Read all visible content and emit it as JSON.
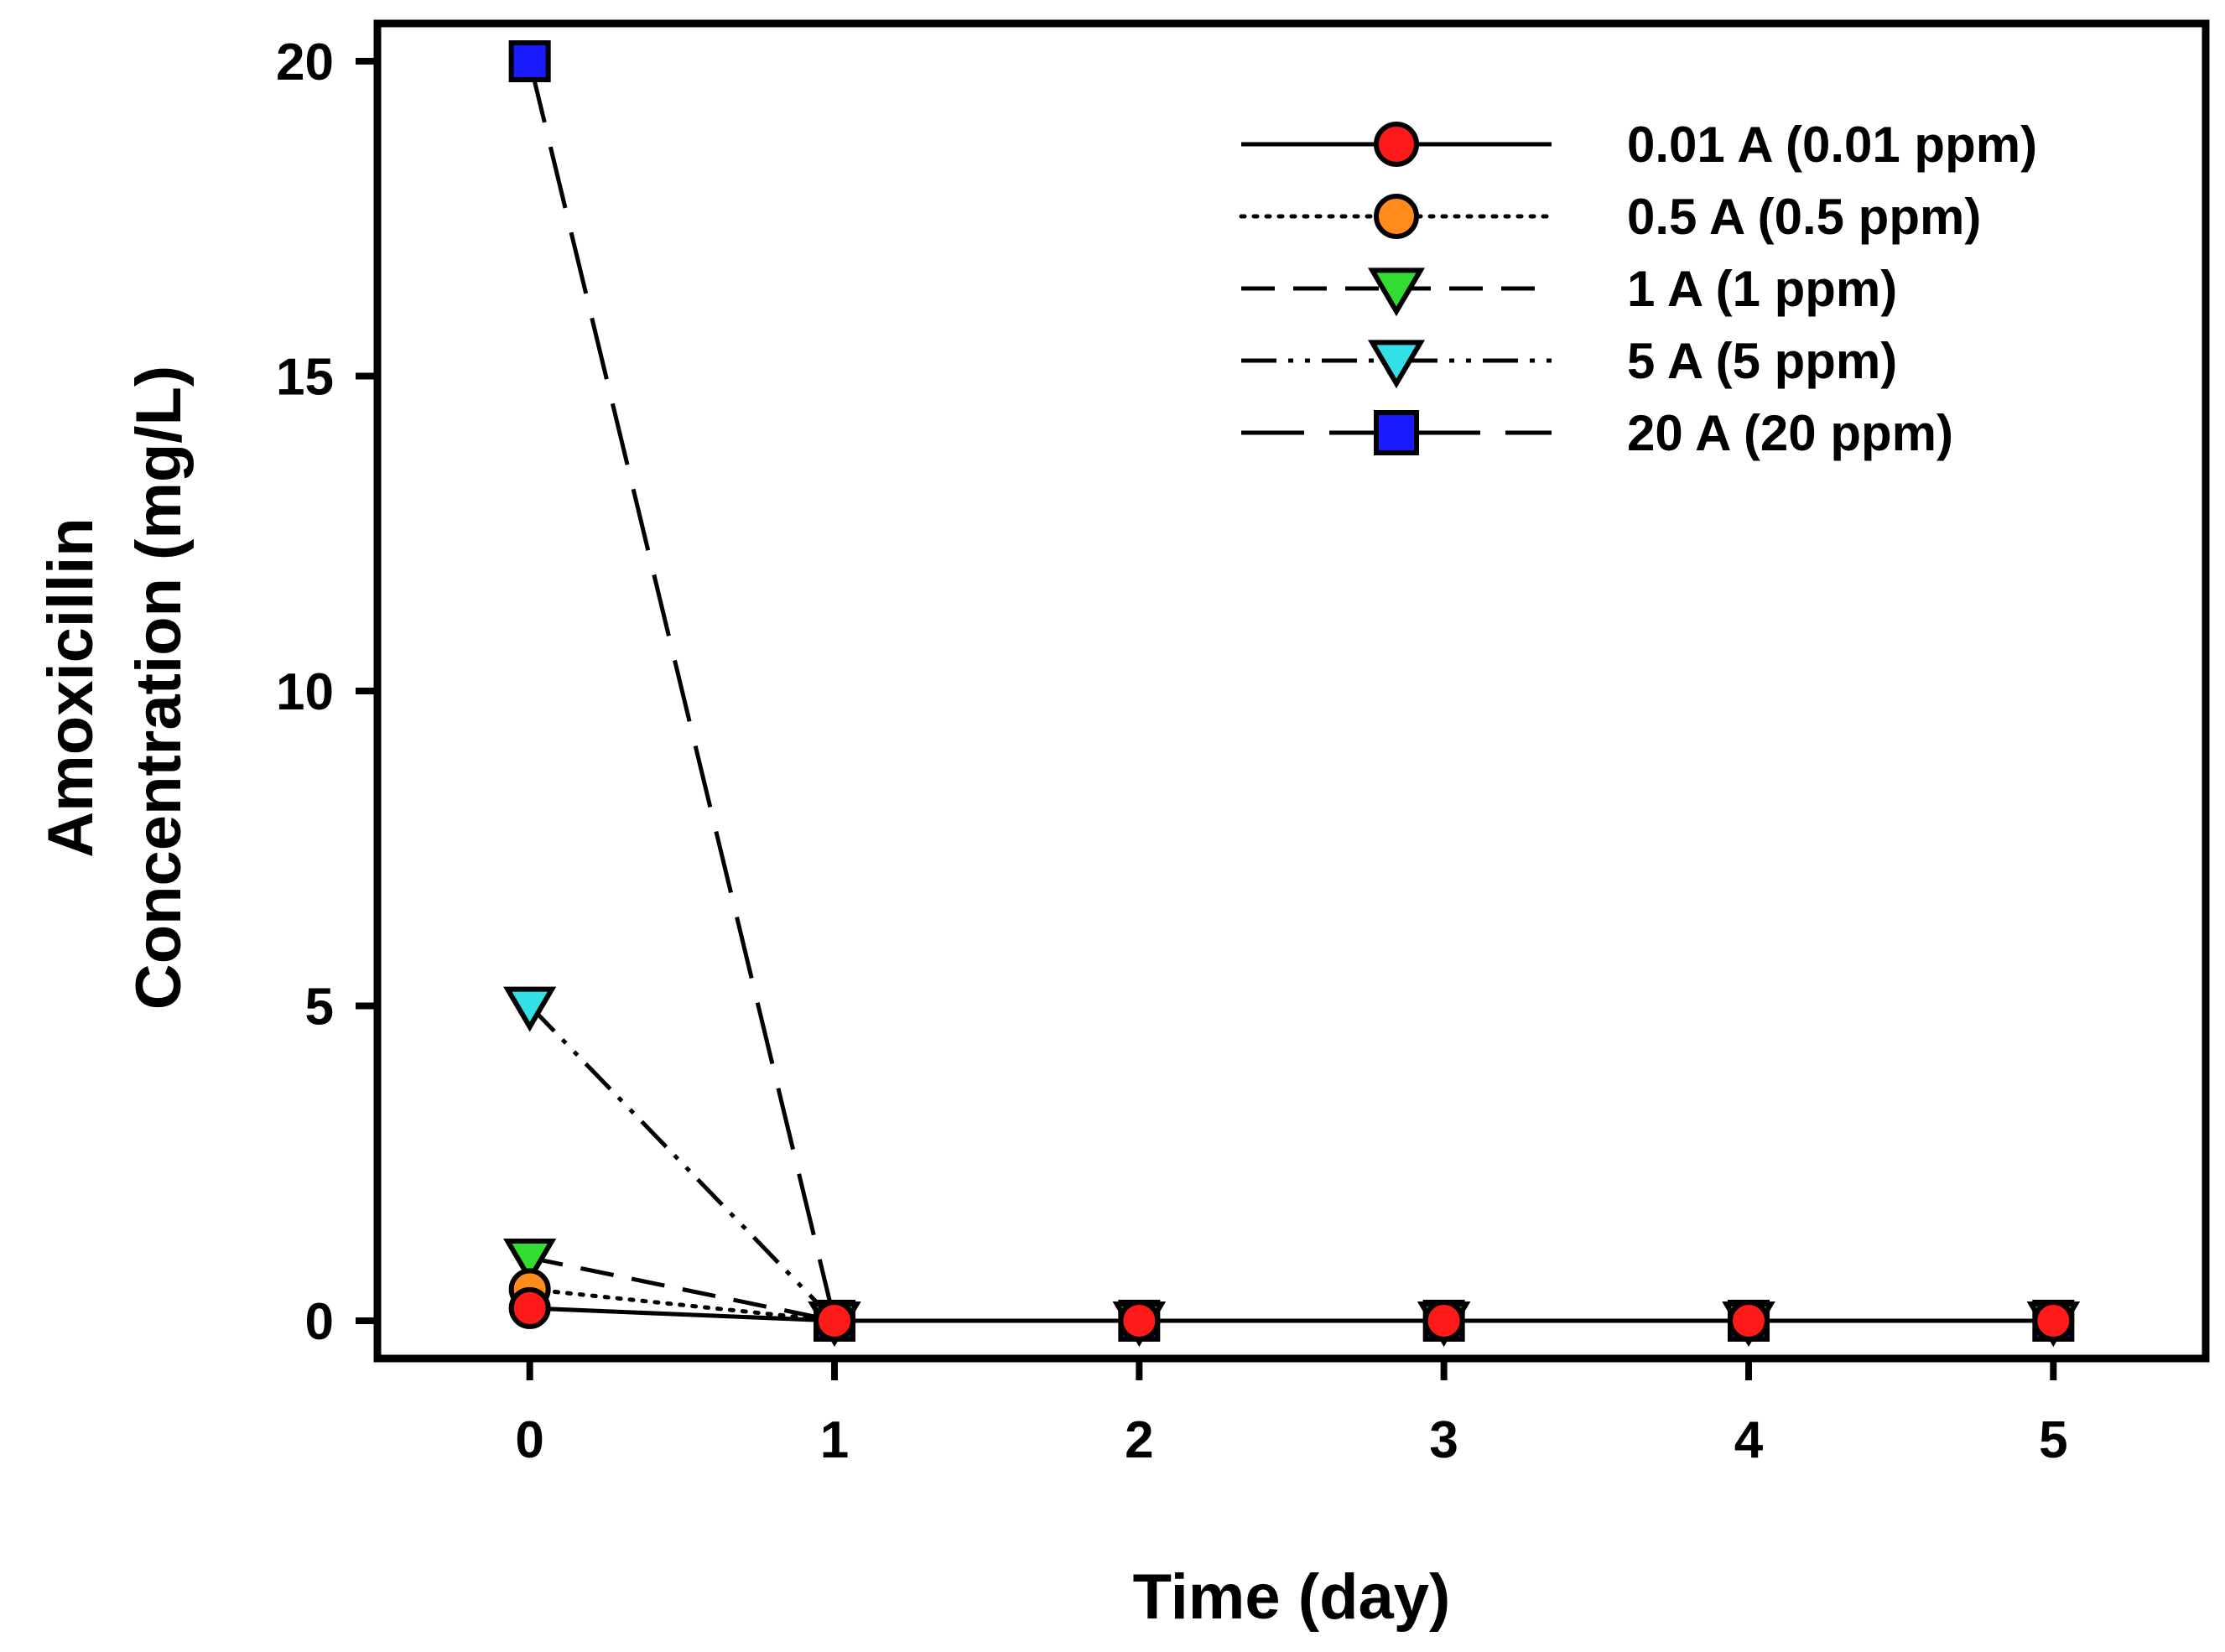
{
  "chart_data": {
    "type": "line",
    "title": "",
    "xlabel": "Time (day)",
    "ylabel_lines": [
      "Amoxicillin",
      "Concentration (mg/L)"
    ],
    "x": [
      0,
      1,
      2,
      3,
      4,
      5
    ],
    "xlim": [
      -0.5,
      5.5
    ],
    "ylim": [
      -0.6,
      20.6
    ],
    "xticks": [
      "0",
      "1",
      "2",
      "3",
      "4",
      "5"
    ],
    "yticks": [
      "0",
      "5",
      "10",
      "15",
      "20"
    ],
    "ytick_values": [
      0,
      5,
      10,
      15,
      20
    ],
    "grid": false,
    "legend_position": "top-right",
    "series": [
      {
        "name": "0.01 A (0.01 ppm)",
        "values": [
          0.2,
          0,
          0,
          0,
          0,
          0
        ],
        "marker": "circle",
        "color": "#ff1a1a",
        "line_style": "solid"
      },
      {
        "name": "0.5 A (0.5 ppm)",
        "values": [
          0.5,
          0,
          0,
          0,
          0,
          0
        ],
        "marker": "circle",
        "color": "#ff8c1a",
        "line_style": "dotted"
      },
      {
        "name": "1 A (1 ppm)",
        "values": [
          1.0,
          0,
          0,
          0,
          0,
          0
        ],
        "marker": "triangle-down",
        "color": "#33dd33",
        "line_style": "dashed"
      },
      {
        "name": "5 A (5 ppm)",
        "values": [
          5.0,
          0,
          0,
          0,
          0,
          0
        ],
        "marker": "triangle-down",
        "color": "#33e0e8",
        "line_style": "dash-dot-dot"
      },
      {
        "name": "20 A (20 ppm)",
        "values": [
          20.0,
          0,
          0,
          0,
          0,
          0
        ],
        "marker": "square",
        "color": "#1a1aff",
        "line_style": "long-dash"
      }
    ]
  }
}
